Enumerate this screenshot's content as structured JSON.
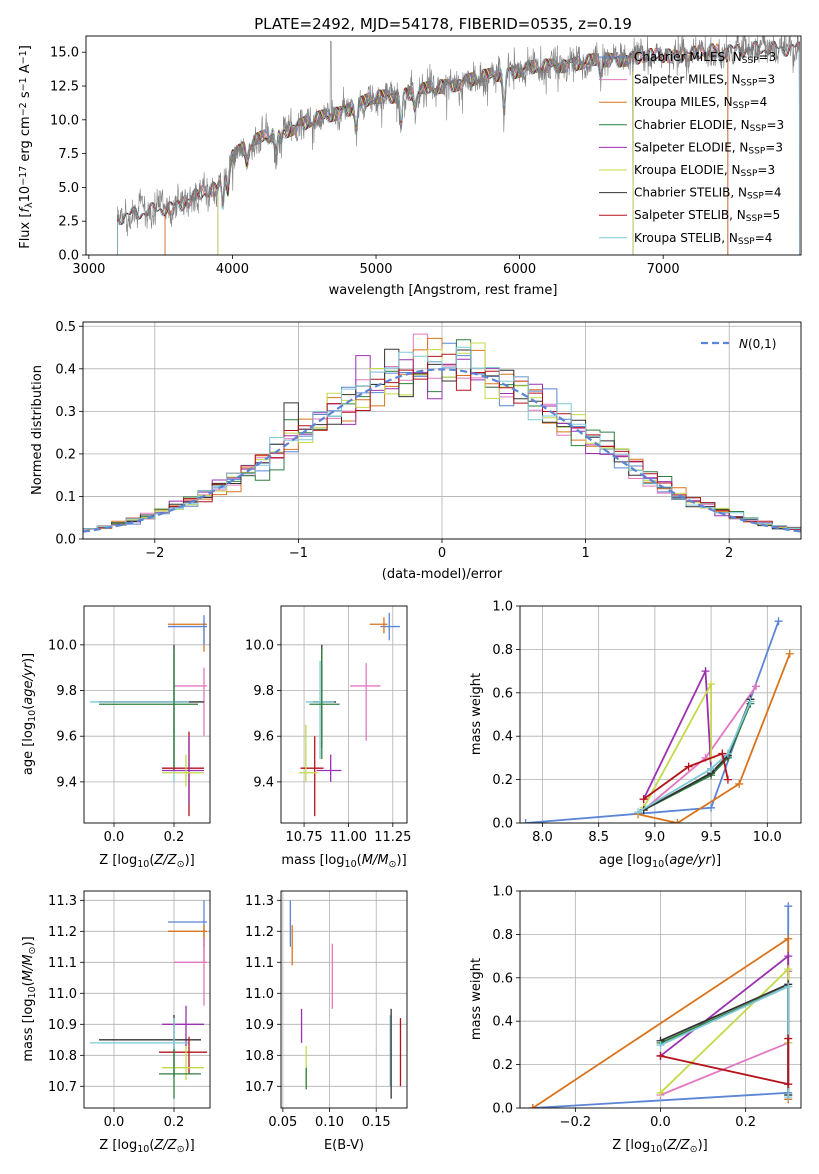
{
  "figure": {
    "title": "PLATE=2492, MJD=54178, FIBERID=0535, z=0.19"
  },
  "chart_data": [
    {
      "id": "spectrum",
      "type": "line",
      "xlabel": "wavelength [Angstrom, rest frame]",
      "ylabel": "Flux [f_λ10^-17 erg cm^-2 s^-1 A^-1]",
      "xlim": [
        2980,
        7960
      ],
      "ylim": [
        0,
        16.2
      ],
      "xticks": [
        3000,
        4000,
        5000,
        6000,
        7000
      ],
      "yticks": [
        0.0,
        2.5,
        5.0,
        7.5,
        10.0,
        12.5,
        15.0
      ],
      "legend_position": "right",
      "continuum": [
        [
          3200,
          2.8
        ],
        [
          3400,
          3.2
        ],
        [
          3600,
          3.6
        ],
        [
          3800,
          4.6
        ],
        [
          3900,
          4.9
        ],
        [
          4000,
          7.5
        ],
        [
          4200,
          8.6
        ],
        [
          4500,
          9.7
        ],
        [
          4800,
          10.8
        ],
        [
          5000,
          11.6
        ],
        [
          5300,
          12.1
        ],
        [
          5600,
          12.8
        ],
        [
          6000,
          13.7
        ],
        [
          6400,
          14.2
        ],
        [
          6800,
          14.6
        ],
        [
          7200,
          14.9
        ],
        [
          7500,
          15.2
        ],
        [
          7900,
          15.3
        ]
      ],
      "series": [
        {
          "name": "Chabrier MILES, N_SSP=3",
          "color": "#5b85d6",
          "start": 3530,
          "end": 7450
        },
        {
          "name": "Salpeter MILES, N_SSP=3",
          "color": "#e377c2",
          "start": 3530,
          "end": 7450
        },
        {
          "name": "Kroupa MILES, N_SSP=4",
          "color": "#d9741c",
          "start": 3530,
          "end": 7450
        },
        {
          "name": "Chabrier ELODIE, N_SSP=3",
          "color": "#2f7f3f",
          "start": 3900,
          "end": 6790
        },
        {
          "name": "Salpeter ELODIE, N_SSP=3",
          "color": "#9b30b0",
          "start": 3900,
          "end": 6790
        },
        {
          "name": "Kroupa ELODIE, N_SSP=3",
          "color": "#c5d94a",
          "start": 3900,
          "end": 6790
        },
        {
          "name": "Chabrier STELIB, N_SSP=4",
          "color": "#333333",
          "start": 3200,
          "end": 7950
        },
        {
          "name": "Salpeter STELIB, N_SSP=5",
          "color": "#b5121b",
          "start": 3200,
          "end": 7950
        },
        {
          "name": "Kroupa STELIB, N_SSP=4",
          "color": "#7fc8d8",
          "start": 3200,
          "end": 7950
        }
      ],
      "observed_color": "#7f7f7f"
    },
    {
      "id": "residuals",
      "type": "line",
      "xlabel": "(data-model)/error",
      "ylabel": "Normed distribution",
      "xlim": [
        -2.5,
        2.5
      ],
      "ylim": [
        0,
        0.51
      ],
      "xticks": [
        -2,
        -1,
        0,
        1,
        2
      ],
      "yticks": [
        0.0,
        0.1,
        0.2,
        0.3,
        0.4,
        0.5
      ],
      "legend": "N(0,1)",
      "legend_color": "#5b85d6",
      "bins": 50,
      "hist_colors": [
        "#5b85d6",
        "#e377c2",
        "#d9741c",
        "#2f7f3f",
        "#9b30b0",
        "#c5d94a",
        "#333333",
        "#b5121b",
        "#7fc8d8"
      ]
    },
    {
      "id": "z-age",
      "type": "scatter",
      "xlabel": "Z [log10(Z/Z⊙)]",
      "ylabel": "age  [log10(age/yr)]",
      "xlim": [
        -0.1,
        0.32
      ],
      "ylim": [
        9.22,
        10.17
      ],
      "xticks": [
        0.0,
        0.2
      ],
      "yticks": [
        9.4,
        9.6,
        9.8,
        10.0
      ],
      "errorbars": [
        {
          "color": "#e377c2",
          "x": 0.3,
          "xlo": 0.2,
          "xhi": 0.31,
          "y": 9.82,
          "ylo": 9.6,
          "yhi": 9.9
        },
        {
          "color": "#d9741c",
          "x": 0.3,
          "xlo": 0.18,
          "xhi": 0.31,
          "y": 10.09,
          "ylo": 9.97,
          "yhi": 10.1
        },
        {
          "color": "#5b85d6",
          "x": 0.3,
          "xlo": 0.18,
          "xhi": 0.31,
          "y": 10.08,
          "ylo": 10.0,
          "yhi": 10.13
        },
        {
          "color": "#333333",
          "x": 0.2,
          "xlo": -0.05,
          "xhi": 0.3,
          "y": 9.75,
          "ylo": 9.45,
          "yhi": 10.0
        },
        {
          "color": "#7fc8d8",
          "x": 0.2,
          "xlo": -0.08,
          "xhi": 0.25,
          "y": 9.75,
          "ylo": 9.4,
          "yhi": 9.95
        },
        {
          "color": "#2f7f3f",
          "x": 0.2,
          "xlo": -0.05,
          "xhi": 0.28,
          "y": 9.74,
          "ylo": 9.45,
          "yhi": 9.98
        },
        {
          "color": "#b5121b",
          "x": 0.25,
          "xlo": 0.16,
          "xhi": 0.3,
          "y": 9.46,
          "ylo": 9.25,
          "yhi": 9.62
        },
        {
          "color": "#9b30b0",
          "x": 0.25,
          "xlo": 0.16,
          "xhi": 0.3,
          "y": 9.45,
          "ylo": 9.3,
          "yhi": 9.6
        },
        {
          "color": "#c5d94a",
          "x": 0.24,
          "xlo": 0.16,
          "xhi": 0.3,
          "y": 9.44,
          "ylo": 9.38,
          "yhi": 9.52
        }
      ]
    },
    {
      "id": "mass-age",
      "type": "scatter",
      "xlabel": "mass [log10(M/M⊙)]",
      "ylabel": "",
      "xlim": [
        10.62,
        11.33
      ],
      "ylim": [
        9.22,
        10.17
      ],
      "xticks": [
        10.75,
        11.0,
        11.25
      ],
      "yticks": [
        9.4,
        9.6,
        9.8,
        10.0
      ],
      "errorbars": [
        {
          "color": "#5b85d6",
          "x": 11.23,
          "xlo": 11.18,
          "xhi": 11.29,
          "y": 10.08,
          "ylo": 10.02,
          "yhi": 10.14
        },
        {
          "color": "#d9741c",
          "x": 11.2,
          "xlo": 11.12,
          "xhi": 11.22,
          "y": 10.09,
          "ylo": 10.05,
          "yhi": 10.12
        },
        {
          "color": "#e377c2",
          "x": 11.1,
          "xlo": 11.01,
          "xhi": 11.18,
          "y": 9.82,
          "ylo": 9.58,
          "yhi": 9.92
        },
        {
          "color": "#333333",
          "x": 10.85,
          "xlo": 10.8,
          "xhi": 10.93,
          "y": 9.75,
          "ylo": 9.55,
          "yhi": 10.0
        },
        {
          "color": "#7fc8d8",
          "x": 10.84,
          "xlo": 10.76,
          "xhi": 10.92,
          "y": 9.75,
          "ylo": 9.5,
          "yhi": 9.93
        },
        {
          "color": "#2f7f3f",
          "x": 10.85,
          "xlo": 10.78,
          "xhi": 10.95,
          "y": 9.74,
          "ylo": 9.5,
          "yhi": 9.98
        },
        {
          "color": "#b5121b",
          "x": 10.81,
          "xlo": 10.73,
          "xhi": 10.86,
          "y": 9.46,
          "ylo": 9.25,
          "yhi": 9.6
        },
        {
          "color": "#9b30b0",
          "x": 10.9,
          "xlo": 10.82,
          "xhi": 10.96,
          "y": 9.45,
          "ylo": 9.4,
          "yhi": 9.52
        },
        {
          "color": "#c5d94a",
          "x": 10.76,
          "xlo": 10.72,
          "xhi": 10.83,
          "y": 9.44,
          "ylo": 9.4,
          "yhi": 9.65
        }
      ]
    },
    {
      "id": "age-weight",
      "type": "line",
      "xlabel": "age  [log10(age/yr)]",
      "ylabel": "mass weight",
      "xlim": [
        7.8,
        10.3
      ],
      "ylim": [
        0,
        1.0
      ],
      "xticks": [
        8.0,
        8.5,
        9.0,
        9.5,
        10.0
      ],
      "yticks": [
        0.0,
        0.2,
        0.4,
        0.6,
        0.8,
        1.0
      ],
      "series": [
        {
          "color": "#5b85d6",
          "x": [
            7.85,
            9.5,
            10.1
          ],
          "y": [
            0.0,
            0.07,
            0.93
          ]
        },
        {
          "color": "#d9741c",
          "x": [
            8.85,
            9.2,
            9.75,
            10.2
          ],
          "y": [
            0.04,
            0.0,
            0.18,
            0.78
          ]
        },
        {
          "color": "#e377c2",
          "x": [
            8.9,
            9.45,
            9.9
          ],
          "y": [
            0.06,
            0.3,
            0.63
          ]
        },
        {
          "color": "#9b30b0",
          "x": [
            8.9,
            9.45,
            9.5
          ],
          "y": [
            0.11,
            0.7,
            0.25
          ]
        },
        {
          "color": "#c5d94a",
          "x": [
            8.9,
            9.5,
            9.5
          ],
          "y": [
            0.07,
            0.64,
            0.3
          ]
        },
        {
          "color": "#2f7f3f",
          "x": [
            8.9,
            9.5,
            9.65,
            9.85
          ],
          "y": [
            0.06,
            0.22,
            0.3,
            0.55
          ]
        },
        {
          "color": "#333333",
          "x": [
            8.9,
            9.5,
            9.65,
            9.85
          ],
          "y": [
            0.06,
            0.23,
            0.31,
            0.57
          ]
        },
        {
          "color": "#7fc8d8",
          "x": [
            8.85,
            9.5,
            9.65,
            9.85
          ],
          "y": [
            0.05,
            0.25,
            0.32,
            0.56
          ]
        },
        {
          "color": "#b5121b",
          "x": [
            8.9,
            9.3,
            9.6,
            9.65
          ],
          "y": [
            0.11,
            0.26,
            0.32,
            0.2
          ]
        }
      ]
    },
    {
      "id": "z-mass",
      "type": "scatter",
      "xlabel": "Z [log10(Z/Z⊙)]",
      "ylabel": "mass [log10(M/M⊙)]",
      "xlim": [
        -0.1,
        0.32
      ],
      "ylim": [
        10.63,
        11.33
      ],
      "xticks": [
        0.0,
        0.2
      ],
      "yticks": [
        10.7,
        10.8,
        10.9,
        11.0,
        11.1,
        11.2,
        11.3
      ],
      "errorbars": [
        {
          "color": "#5b85d6",
          "x": 0.3,
          "xlo": 0.18,
          "xhi": 0.31,
          "y": 11.23,
          "ylo": 11.15,
          "yhi": 11.3
        },
        {
          "color": "#d9741c",
          "x": 0.3,
          "xlo": 0.18,
          "xhi": 0.31,
          "y": 11.2,
          "ylo": 11.1,
          "yhi": 11.22
        },
        {
          "color": "#e377c2",
          "x": 0.3,
          "xlo": 0.2,
          "xhi": 0.31,
          "y": 11.1,
          "ylo": 10.96,
          "yhi": 11.18
        },
        {
          "color": "#9b30b0",
          "x": 0.24,
          "xlo": 0.16,
          "xhi": 0.3,
          "y": 10.9,
          "ylo": 10.83,
          "yhi": 10.96
        },
        {
          "color": "#333333",
          "x": 0.2,
          "xlo": -0.05,
          "xhi": 0.29,
          "y": 10.85,
          "ylo": 10.73,
          "yhi": 10.93
        },
        {
          "color": "#7fc8d8",
          "x": 0.2,
          "xlo": -0.08,
          "xhi": 0.25,
          "y": 10.84,
          "ylo": 10.76,
          "yhi": 10.92
        },
        {
          "color": "#b5121b",
          "x": 0.25,
          "xlo": 0.15,
          "xhi": 0.31,
          "y": 10.81,
          "ylo": 10.74,
          "yhi": 10.86
        },
        {
          "color": "#c5d94a",
          "x": 0.24,
          "xlo": 0.16,
          "xhi": 0.3,
          "y": 10.76,
          "ylo": 10.72,
          "yhi": 10.83
        },
        {
          "color": "#2f7f3f",
          "x": 0.2,
          "xlo": 0.15,
          "xhi": 0.29,
          "y": 10.74,
          "ylo": 10.66,
          "yhi": 10.82
        }
      ]
    },
    {
      "id": "ebv-mass",
      "type": "scatter",
      "xlabel": "E(B-V)",
      "ylabel": "",
      "xlim": [
        0.048,
        0.183
      ],
      "ylim": [
        10.63,
        11.33
      ],
      "xticks": [
        0.05,
        0.1,
        0.15
      ],
      "yticks": [
        10.7,
        10.8,
        10.9,
        11.0,
        11.1,
        11.2,
        11.3
      ],
      "errorbars": [
        {
          "color": "#5b85d6",
          "x": 0.058,
          "y": 11.23,
          "ylo": 11.15,
          "yhi": 11.3
        },
        {
          "color": "#d9741c",
          "x": 0.06,
          "y": 11.18,
          "ylo": 11.09,
          "yhi": 11.22
        },
        {
          "color": "#e377c2",
          "x": 0.103,
          "y": 11.06,
          "ylo": 10.95,
          "yhi": 11.16
        },
        {
          "color": "#9b30b0",
          "x": 0.07,
          "y": 10.9,
          "ylo": 10.84,
          "yhi": 10.95
        },
        {
          "color": "#c5d94a",
          "x": 0.075,
          "y": 10.76,
          "ylo": 10.7,
          "yhi": 10.83
        },
        {
          "color": "#2f7f3f",
          "x": 0.075,
          "y": 10.72,
          "ylo": 10.69,
          "yhi": 10.76
        },
        {
          "color": "#7fc8d8",
          "x": 0.165,
          "y": 10.84,
          "ylo": 10.7,
          "yhi": 10.93
        },
        {
          "color": "#333333",
          "x": 0.166,
          "y": 10.82,
          "ylo": 10.66,
          "yhi": 10.95
        },
        {
          "color": "#b5121b",
          "x": 0.176,
          "y": 10.81,
          "ylo": 10.7,
          "yhi": 10.92
        }
      ]
    },
    {
      "id": "z-weight",
      "type": "line",
      "xlabel": "Z [log10(Z/Z⊙)]",
      "ylabel": "mass weight",
      "xlim": [
        -0.33,
        0.33
      ],
      "ylim": [
        0,
        1.0
      ],
      "xticks": [
        -0.2,
        0.0,
        0.2
      ],
      "yticks": [
        0.0,
        0.2,
        0.4,
        0.6,
        0.8,
        1.0
      ],
      "series": [
        {
          "color": "#5b85d6",
          "x": [
            -0.3,
            0.3,
            0.3
          ],
          "y": [
            0.0,
            0.07,
            0.93
          ]
        },
        {
          "color": "#d9741c",
          "x": [
            -0.3,
            0.3,
            0.3
          ],
          "y": [
            0.0,
            0.78,
            0.04
          ]
        },
        {
          "color": "#e377c2",
          "x": [
            0.0,
            0.3,
            0.3
          ],
          "y": [
            0.06,
            0.3,
            0.63
          ]
        },
        {
          "color": "#9b30b0",
          "x": [
            0.0,
            0.3,
            0.3
          ],
          "y": [
            0.24,
            0.7,
            0.11
          ]
        },
        {
          "color": "#c5d94a",
          "x": [
            0.0,
            0.3,
            0.3
          ],
          "y": [
            0.07,
            0.64,
            0.3
          ]
        },
        {
          "color": "#2f7f3f",
          "x": [
            0.0,
            0.3,
            0.3
          ],
          "y": [
            0.3,
            0.56,
            0.06
          ]
        },
        {
          "color": "#333333",
          "x": [
            0.0,
            0.3,
            0.3
          ],
          "y": [
            0.31,
            0.57,
            0.06
          ]
        },
        {
          "color": "#7fc8d8",
          "x": [
            0.0,
            0.3,
            0.3
          ],
          "y": [
            0.29,
            0.56,
            0.05
          ]
        },
        {
          "color": "#b5121b",
          "x": [
            0.0,
            0.3,
            0.3
          ],
          "y": [
            0.24,
            0.11,
            0.32
          ]
        }
      ]
    }
  ]
}
